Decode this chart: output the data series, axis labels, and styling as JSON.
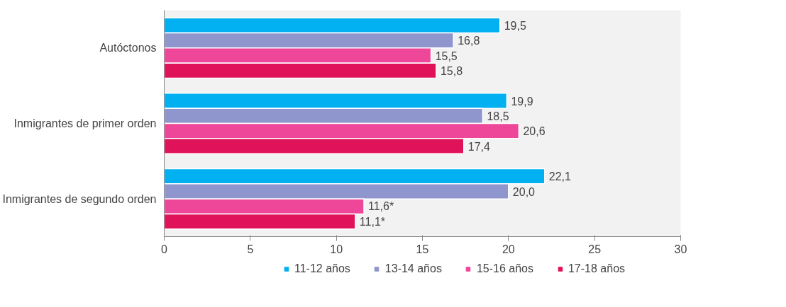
{
  "chart_data": {
    "type": "bar",
    "orientation": "horizontal",
    "categories": [
      "Autóctonos",
      "Inmigrantes de primer orden",
      "Inmigrantes de segundo orden"
    ],
    "series": [
      {
        "name": "11-12 años",
        "color": "#00b0f0",
        "values": [
          19.5,
          19.9,
          22.1
        ],
        "value_labels": [
          "19,5",
          "19,9",
          "22,1"
        ]
      },
      {
        "name": "13-14 años",
        "color": "#8e96cd",
        "values": [
          16.8,
          18.5,
          20.0
        ],
        "value_labels": [
          "16,8",
          "18,5",
          "20,0"
        ]
      },
      {
        "name": "15-16 años",
        "color": "#ee4799",
        "values": [
          15.5,
          20.6,
          11.6
        ],
        "value_labels": [
          "15,5",
          "20,6",
          "11,6*"
        ]
      },
      {
        "name": "17-18 años",
        "color": "#e0125a",
        "values": [
          15.8,
          17.4,
          11.1
        ],
        "value_labels": [
          "15,8",
          "17,4",
          "11,1*"
        ]
      }
    ],
    "xlim": [
      0,
      30
    ],
    "xticks": [
      0,
      5,
      10,
      15,
      20,
      25,
      30
    ],
    "grid": false,
    "legend": "bottom"
  }
}
